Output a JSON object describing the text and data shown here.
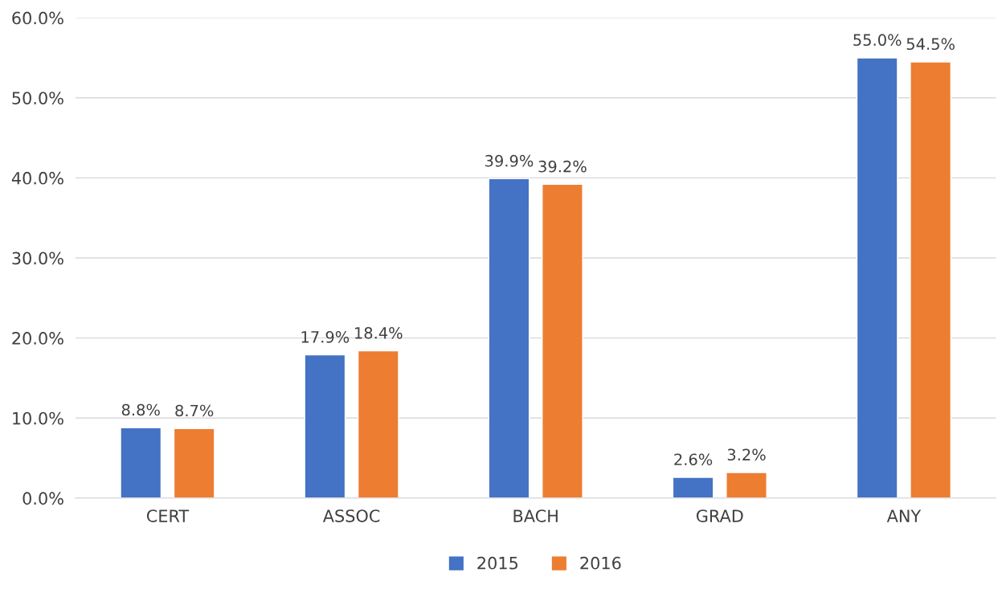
{
  "chart_data": {
    "type": "bar",
    "categories": [
      "CERT",
      "ASSOC",
      "BACH",
      "GRAD",
      "ANY"
    ],
    "series": [
      {
        "name": "2015",
        "color": "#4472c4",
        "values": [
          8.8,
          17.9,
          39.9,
          2.6,
          55.0
        ],
        "value_labels": [
          "8.8%",
          "17.9%",
          "39.9%",
          "2.6%",
          "55.0%"
        ]
      },
      {
        "name": "2016",
        "color": "#ed7d31",
        "values": [
          8.7,
          18.4,
          39.2,
          3.2,
          54.5
        ],
        "value_labels": [
          "8.7%",
          "18.4%",
          "39.2%",
          "3.2%",
          "54.5%"
        ]
      }
    ],
    "ylim": [
      0,
      60
    ],
    "yticks": [
      {
        "value": 0,
        "label": "0.0%"
      },
      {
        "value": 10,
        "label": "10.0%"
      },
      {
        "value": 20,
        "label": "20.0%"
      },
      {
        "value": 30,
        "label": "30.0%"
      },
      {
        "value": 40,
        "label": "40.0%"
      },
      {
        "value": 50,
        "label": "50.0%"
      },
      {
        "value": 60,
        "label": "60.0%"
      }
    ],
    "grid": "y",
    "legend": "bottom"
  }
}
